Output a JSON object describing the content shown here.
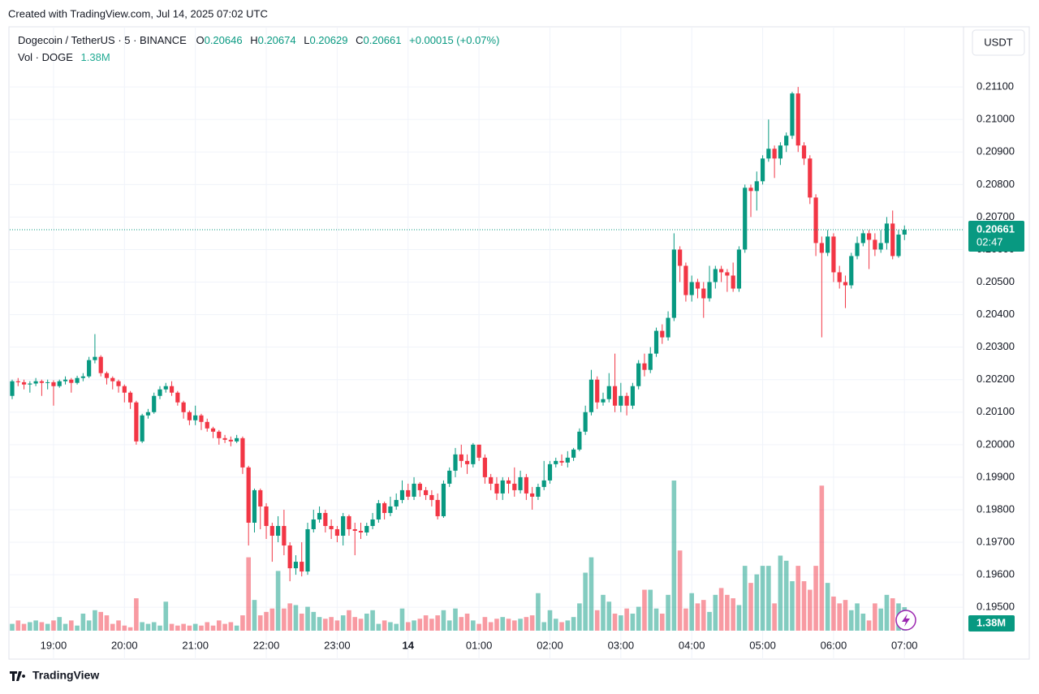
{
  "chart_data": {
    "type": "candlestick",
    "watermark": "Created with TradingView.com, Jul 14, 2025 07:02 UTC",
    "title": "Dogecoin / TetherUS · 5 · BINANCE",
    "ohlc_keys": [
      "O",
      "H",
      "L",
      "C"
    ],
    "change_label": "+0.00015 (+0.07%)",
    "currency": "USDT",
    "countdown": "02:47",
    "footer": "TradingView",
    "up_color": "#089981",
    "down_color": "#f23645",
    "grid": true,
    "x": [
      "18:25",
      "18:30",
      "18:35",
      "18:40",
      "18:45",
      "18:50",
      "18:55",
      "19:00",
      "19:05",
      "19:10",
      "19:15",
      "19:20",
      "19:25",
      "19:30",
      "19:35",
      "19:40",
      "19:45",
      "19:50",
      "19:55",
      "20:00",
      "20:05",
      "20:10",
      "20:15",
      "20:20",
      "20:25",
      "20:30",
      "20:35",
      "20:40",
      "20:45",
      "20:50",
      "20:55",
      "21:00",
      "21:05",
      "21:10",
      "21:15",
      "21:20",
      "21:25",
      "21:30",
      "21:35",
      "21:40",
      "21:45",
      "21:50",
      "21:55",
      "22:00",
      "22:05",
      "22:10",
      "22:15",
      "22:20",
      "22:25",
      "22:30",
      "22:35",
      "22:40",
      "22:45",
      "22:50",
      "22:55",
      "23:00",
      "23:05",
      "23:10",
      "23:15",
      "23:20",
      "23:25",
      "23:30",
      "23:35",
      "23:40",
      "23:45",
      "23:50",
      "23:55",
      "00:00",
      "00:05",
      "00:10",
      "00:15",
      "00:20",
      "00:25",
      "00:30",
      "00:35",
      "00:40",
      "00:45",
      "00:50",
      "00:55",
      "01:00",
      "01:05",
      "01:10",
      "01:15",
      "01:20",
      "01:25",
      "01:30",
      "01:35",
      "01:40",
      "01:45",
      "01:50",
      "01:55",
      "02:00",
      "02:05",
      "02:10",
      "02:15",
      "02:20",
      "02:25",
      "02:30",
      "02:35",
      "02:40",
      "02:45",
      "02:50",
      "02:55",
      "03:00",
      "03:05",
      "03:10",
      "03:15",
      "03:20",
      "03:25",
      "03:30",
      "03:35",
      "03:40",
      "03:45",
      "03:50",
      "03:55",
      "04:00",
      "04:05",
      "04:10",
      "04:15",
      "04:20",
      "04:25",
      "04:30",
      "04:35",
      "04:40",
      "04:45",
      "04:50",
      "04:55",
      "05:00",
      "05:05",
      "05:10",
      "05:15",
      "05:20",
      "05:25",
      "05:30",
      "05:35",
      "05:40",
      "05:45",
      "05:50",
      "05:55",
      "06:00",
      "06:05",
      "06:10",
      "06:15",
      "06:20",
      "06:25",
      "06:30",
      "06:35",
      "06:40",
      "06:45",
      "06:50",
      "06:55",
      "07:00"
    ],
    "open": [
      0.2015,
      0.20195,
      0.20192,
      0.20185,
      0.20188,
      0.20195,
      0.2019,
      0.20192,
      0.2018,
      0.20195,
      0.202,
      0.2019,
      0.20205,
      0.2021,
      0.2026,
      0.2027,
      0.2022,
      0.20205,
      0.20195,
      0.2018,
      0.2016,
      0.2013,
      0.2001,
      0.2009,
      0.201,
      0.2015,
      0.2017,
      0.2018,
      0.2016,
      0.2013,
      0.201,
      0.20075,
      0.2009,
      0.2007,
      0.2005,
      0.2004,
      0.2002,
      0.20015,
      0.2001,
      0.2002,
      0.1993,
      0.1976,
      0.1986,
      0.1981,
      0.1975,
      0.1972,
      0.1975,
      0.1969,
      0.1962,
      0.1964,
      0.1961,
      0.1974,
      0.1977,
      0.1979,
      0.1975,
      0.1974,
      0.1972,
      0.1978,
      0.1974,
      0.19735,
      0.1973,
      0.1975,
      0.1977,
      0.1982,
      0.1979,
      0.1981,
      0.1983,
      0.1986,
      0.1984,
      0.1988,
      0.1986,
      0.19845,
      0.1983,
      0.1978,
      0.1988,
      0.1992,
      0.1997,
      0.1995,
      0.1994,
      0.2,
      0.1996,
      0.199,
      0.1988,
      0.1985,
      0.1989,
      0.1988,
      0.1986,
      0.199,
      0.1985,
      0.1984,
      0.1987,
      0.1989,
      0.1994,
      0.1995,
      0.19945,
      0.1996,
      0.19985,
      0.2004,
      0.201,
      0.202,
      0.2013,
      0.2014,
      0.2018,
      0.2012,
      0.2015,
      0.2012,
      0.2018,
      0.2025,
      0.2023,
      0.2028,
      0.2035,
      0.2033,
      0.2039,
      0.206,
      0.2055,
      0.2046,
      0.205,
      0.2048,
      0.2045,
      0.205,
      0.2054,
      0.2053,
      0.2052,
      0.2048,
      0.206,
      0.2079,
      0.2078,
      0.2081,
      0.2088,
      0.2091,
      0.2088,
      0.2092,
      0.2095,
      0.2108,
      0.2092,
      0.2088,
      0.2076,
      0.2062,
      0.2059,
      0.2064,
      0.2053,
      0.205,
      0.2049,
      0.2058,
      0.2062,
      0.2065,
      0.2063,
      0.206,
      0.2062,
      0.2068,
      0.2058,
      0.20646
    ],
    "high": [
      0.202,
      0.20205,
      0.202,
      0.20195,
      0.20205,
      0.202,
      0.202,
      0.20198,
      0.202,
      0.2021,
      0.20205,
      0.20212,
      0.2022,
      0.2027,
      0.2034,
      0.20275,
      0.20225,
      0.2021,
      0.202,
      0.20185,
      0.20165,
      0.20135,
      0.20095,
      0.2011,
      0.2016,
      0.2018,
      0.2019,
      0.20195,
      0.20165,
      0.20135,
      0.20105,
      0.2012,
      0.20095,
      0.2008,
      0.20055,
      0.20045,
      0.2003,
      0.20025,
      0.2003,
      0.20025,
      0.19935,
      0.19865,
      0.19865,
      0.1982,
      0.1976,
      0.1978,
      0.198,
      0.197,
      0.1966,
      0.197,
      0.1976,
      0.198,
      0.1981,
      0.198,
      0.1977,
      0.1975,
      0.1979,
      0.19785,
      0.1976,
      0.1976,
      0.1976,
      0.1979,
      0.1983,
      0.19825,
      0.1984,
      0.1985,
      0.1989,
      0.1988,
      0.199,
      0.19885,
      0.1987,
      0.1986,
      0.1985,
      0.1989,
      0.1993,
      0.1999,
      0.2,
      0.1997,
      0.20005,
      0.2,
      0.1997,
      0.1991,
      0.199,
      0.199,
      0.199,
      0.1993,
      0.1992,
      0.1991,
      0.1987,
      0.1988,
      0.1995,
      0.1995,
      0.1996,
      0.1997,
      0.1998,
      0.1999,
      0.2005,
      0.2012,
      0.2023,
      0.2021,
      0.2016,
      0.2022,
      0.2028,
      0.2019,
      0.2016,
      0.2019,
      0.2026,
      0.2028,
      0.203,
      0.2036,
      0.2037,
      0.2041,
      0.2065,
      0.2061,
      0.2056,
      0.2052,
      0.2051,
      0.205,
      0.2055,
      0.2055,
      0.2055,
      0.2054,
      0.2056,
      0.2061,
      0.208,
      0.208,
      0.2084,
      0.2089,
      0.21,
      0.2092,
      0.2093,
      0.2096,
      0.21085,
      0.211,
      0.2093,
      0.2089,
      0.2077,
      0.2064,
      0.2066,
      0.2065,
      0.2055,
      0.2052,
      0.2059,
      0.2064,
      0.2066,
      0.2066,
      0.2065,
      0.2066,
      0.207,
      0.2072,
      0.2066,
      0.20674
    ],
    "low": [
      0.2014,
      0.2018,
      0.2017,
      0.2016,
      0.2018,
      0.2015,
      0.2017,
      0.2012,
      0.20175,
      0.20185,
      0.2016,
      0.20185,
      0.20195,
      0.20205,
      0.2025,
      0.2021,
      0.20185,
      0.2017,
      0.2016,
      0.2013,
      0.2011,
      0.2,
      0.20005,
      0.2008,
      0.20095,
      0.2014,
      0.2016,
      0.2015,
      0.2012,
      0.2008,
      0.2006,
      0.2006,
      0.20045,
      0.2004,
      0.2002,
      0.2,
      0.20005,
      0.19995,
      0.20005,
      0.1991,
      0.1969,
      0.1973,
      0.1974,
      0.1971,
      0.1964,
      0.197,
      0.1966,
      0.1958,
      0.196,
      0.19595,
      0.196,
      0.1973,
      0.1976,
      0.1973,
      0.1971,
      0.197,
      0.1969,
      0.1972,
      0.1966,
      0.1971,
      0.1972,
      0.1974,
      0.1976,
      0.1977,
      0.1978,
      0.198,
      0.1982,
      0.1983,
      0.1983,
      0.1984,
      0.1983,
      0.1981,
      0.1977,
      0.19775,
      0.1987,
      0.199,
      0.1993,
      0.1991,
      0.1993,
      0.1995,
      0.1988,
      0.1986,
      0.1983,
      0.1983,
      0.1985,
      0.1984,
      0.1985,
      0.1983,
      0.198,
      0.1983,
      0.1986,
      0.1988,
      0.1993,
      0.19935,
      0.1993,
      0.1995,
      0.1998,
      0.2003,
      0.2009,
      0.2011,
      0.2012,
      0.2013,
      0.201,
      0.201,
      0.2009,
      0.2011,
      0.2017,
      0.2021,
      0.2022,
      0.2027,
      0.2031,
      0.2032,
      0.2038,
      0.205,
      0.2044,
      0.2044,
      0.2045,
      0.2039,
      0.2044,
      0.2048,
      0.205,
      0.2047,
      0.2047,
      0.2047,
      0.2059,
      0.207,
      0.2072,
      0.208,
      0.2087,
      0.2082,
      0.2086,
      0.209,
      0.2094,
      0.209,
      0.2086,
      0.2074,
      0.2058,
      0.2033,
      0.2058,
      0.205,
      0.2048,
      0.2042,
      0.2048,
      0.2057,
      0.2061,
      0.2054,
      0.2058,
      0.2059,
      0.206,
      0.2057,
      0.20575,
      0.20629
    ],
    "close": [
      0.20195,
      0.20192,
      0.20185,
      0.20188,
      0.20195,
      0.2019,
      0.20192,
      0.2018,
      0.20195,
      0.202,
      0.2019,
      0.20205,
      0.2021,
      0.2026,
      0.2027,
      0.2022,
      0.20205,
      0.20195,
      0.2018,
      0.2016,
      0.2013,
      0.2001,
      0.2009,
      0.201,
      0.2015,
      0.2017,
      0.2018,
      0.2016,
      0.2013,
      0.201,
      0.20075,
      0.2009,
      0.2007,
      0.2005,
      0.2004,
      0.2002,
      0.20015,
      0.2001,
      0.2002,
      0.1993,
      0.1976,
      0.1986,
      0.1981,
      0.1975,
      0.1972,
      0.1975,
      0.1969,
      0.1962,
      0.1964,
      0.1961,
      0.1974,
      0.1977,
      0.1979,
      0.1975,
      0.1974,
      0.1972,
      0.1978,
      0.1974,
      0.19735,
      0.1973,
      0.1975,
      0.1977,
      0.1982,
      0.1979,
      0.1981,
      0.1983,
      0.1986,
      0.1984,
      0.1988,
      0.1986,
      0.19845,
      0.1983,
      0.1978,
      0.1988,
      0.1992,
      0.1997,
      0.1995,
      0.1994,
      0.2,
      0.1996,
      0.199,
      0.1988,
      0.1985,
      0.1989,
      0.1988,
      0.1986,
      0.199,
      0.1985,
      0.1984,
      0.1987,
      0.1989,
      0.1994,
      0.1995,
      0.19945,
      0.1996,
      0.19985,
      0.2004,
      0.201,
      0.202,
      0.2013,
      0.2014,
      0.2018,
      0.2012,
      0.2015,
      0.2012,
      0.2018,
      0.2025,
      0.2023,
      0.2028,
      0.2035,
      0.2033,
      0.2039,
      0.206,
      0.2055,
      0.2046,
      0.205,
      0.2048,
      0.2045,
      0.205,
      0.2054,
      0.2053,
      0.2052,
      0.2048,
      0.206,
      0.2079,
      0.2078,
      0.2081,
      0.2088,
      0.2091,
      0.2088,
      0.2092,
      0.2095,
      0.2108,
      0.2092,
      0.2088,
      0.2076,
      0.2062,
      0.2059,
      0.2064,
      0.2053,
      0.205,
      0.2049,
      0.2058,
      0.2062,
      0.2065,
      0.2063,
      0.206,
      0.2062,
      0.2068,
      0.2058,
      0.20646,
      0.20661
    ],
    "volume": {
      "name": "Vol · DOGE",
      "label": "1.38M",
      "values": [
        0.4,
        0.6,
        0.4,
        0.5,
        0.6,
        0.5,
        0.4,
        0.6,
        0.8,
        0.4,
        0.6,
        0.3,
        1.0,
        0.6,
        1.2,
        1.1,
        0.9,
        0.4,
        0.6,
        0.3,
        0.2,
        1.9,
        0.5,
        0.4,
        0.5,
        0.3,
        1.7,
        0.4,
        0.3,
        0.4,
        0.3,
        0.4,
        0.3,
        0.5,
        0.3,
        0.6,
        0.4,
        0.5,
        0.3,
        0.9,
        4.3,
        1.8,
        0.9,
        1.1,
        1.3,
        3.5,
        1.3,
        1.6,
        1.5,
        1.0,
        1.4,
        1.1,
        0.8,
        0.7,
        0.8,
        0.6,
        0.9,
        1.2,
        0.8,
        0.7,
        1.0,
        1.2,
        0.4,
        0.6,
        0.5,
        0.4,
        1.3,
        0.5,
        0.6,
        0.7,
        0.9,
        0.7,
        0.9,
        1.2,
        0.6,
        1.3,
        0.8,
        1.0,
        0.6,
        0.4,
        0.8,
        0.5,
        0.7,
        0.8,
        0.7,
        0.6,
        0.7,
        0.8,
        0.9,
        2.2,
        0.5,
        1.2,
        0.7,
        0.5,
        0.6,
        0.8,
        1.6,
        3.4,
        4.3,
        1.2,
        2.1,
        1.7,
        1.0,
        0.9,
        1.3,
        1.0,
        1.4,
        2.4,
        2.4,
        1.3,
        1.0,
        2.1,
        8.8,
        4.7,
        1.3,
        2.2,
        1.6,
        1.8,
        1.1,
        2.1,
        2.5,
        2.1,
        1.9,
        1.5,
        3.8,
        2.8,
        3.3,
        3.8,
        3.8,
        1.6,
        4.4,
        4.1,
        2.9,
        3.8,
        2.9,
        2.4,
        3.8,
        8.5,
        2.8,
        2.0,
        1.6,
        1.8,
        1.2,
        1.6,
        1.0,
        0.6,
        1.6,
        1.3,
        2.1,
        1.9,
        1.6,
        1.38
      ]
    },
    "ylim": [
      0.19423,
      0.21285
    ],
    "yticks": [
      {
        "value": 0.195,
        "label": "0.19500"
      },
      {
        "value": 0.196,
        "label": "0.19600"
      },
      {
        "value": 0.197,
        "label": "0.19700"
      },
      {
        "value": 0.198,
        "label": "0.19800"
      },
      {
        "value": 0.199,
        "label": "0.19900"
      },
      {
        "value": 0.2,
        "label": "0.20000"
      },
      {
        "value": 0.201,
        "label": "0.20100"
      },
      {
        "value": 0.202,
        "label": "0.20200"
      },
      {
        "value": 0.203,
        "label": "0.20300"
      },
      {
        "value": 0.204,
        "label": "0.20400"
      },
      {
        "value": 0.205,
        "label": "0.20500"
      },
      {
        "value": 0.206,
        "label": "0.20600"
      },
      {
        "value": 0.207,
        "label": "0.20700"
      },
      {
        "value": 0.208,
        "label": "0.20800"
      },
      {
        "value": 0.209,
        "label": "0.20900"
      },
      {
        "value": 0.21,
        "label": "0.21000"
      },
      {
        "value": 0.211,
        "label": "0.21100"
      }
    ],
    "xticks": [
      {
        "value": "19:00",
        "label": "19:00"
      },
      {
        "value": "20:00",
        "label": "20:00"
      },
      {
        "value": "21:00",
        "label": "21:00"
      },
      {
        "value": "22:00",
        "label": "22:00"
      },
      {
        "value": "23:00",
        "label": "23:00"
      },
      {
        "value": "00:00",
        "label": "14"
      },
      {
        "value": "01:00",
        "label": "01:00"
      },
      {
        "value": "02:00",
        "label": "02:00"
      },
      {
        "value": "03:00",
        "label": "03:00"
      },
      {
        "value": "04:00",
        "label": "04:00"
      },
      {
        "value": "05:00",
        "label": "05:00"
      },
      {
        "value": "06:00",
        "label": "06:00"
      },
      {
        "value": "07:00",
        "label": "07:00"
      }
    ]
  }
}
